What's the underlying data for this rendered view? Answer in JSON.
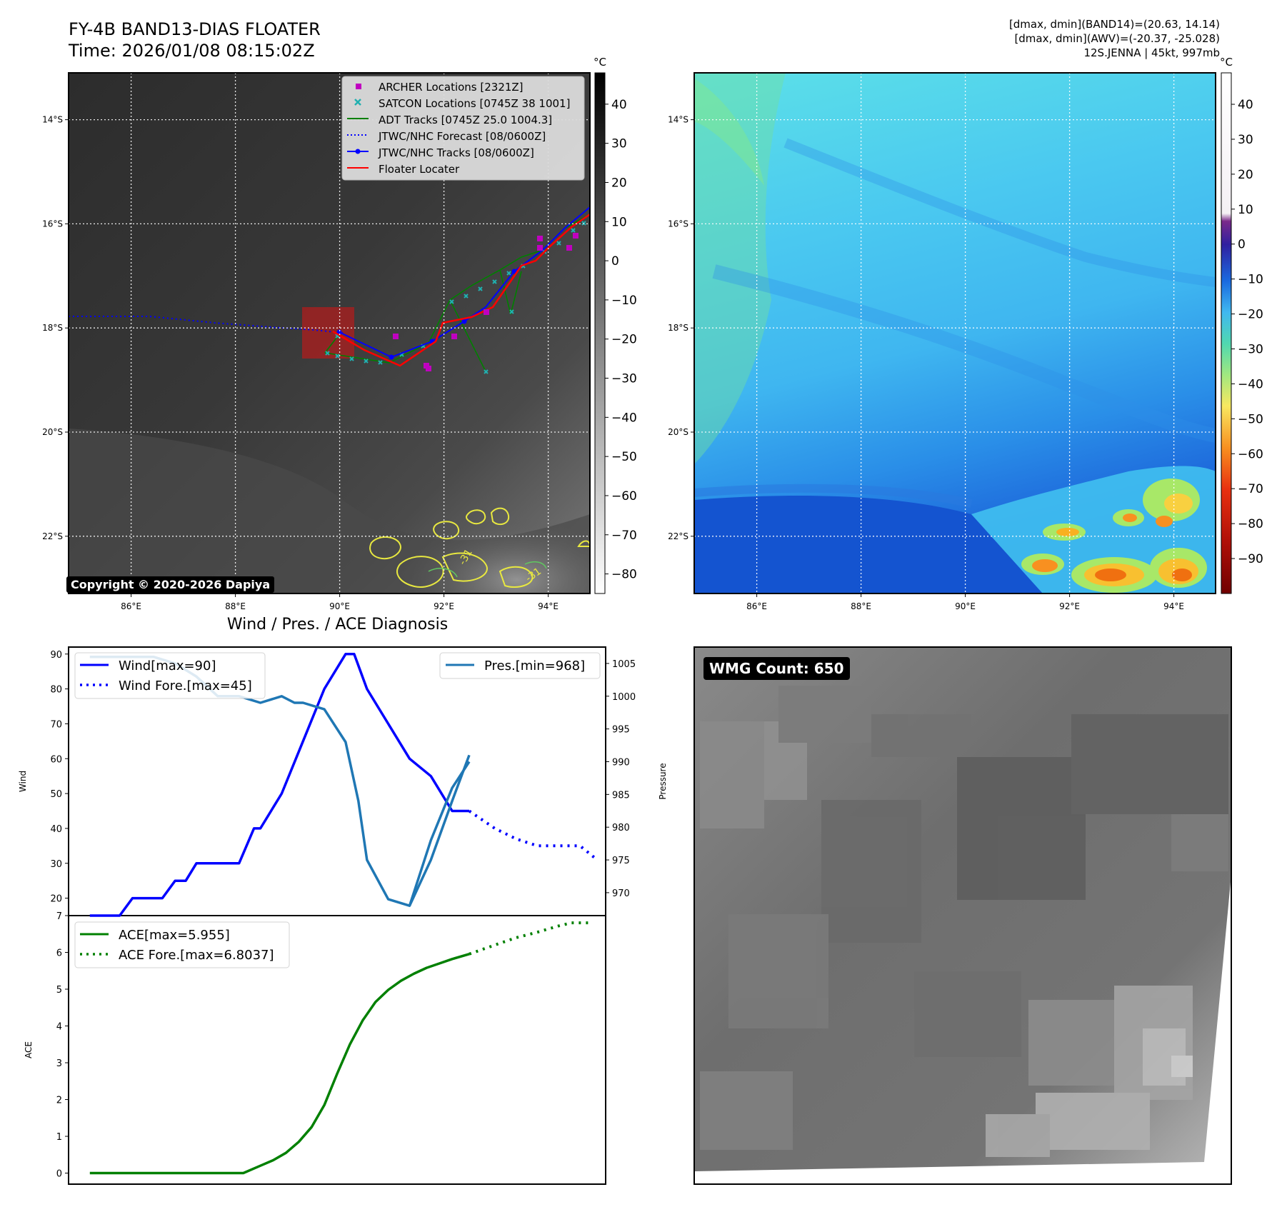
{
  "header": {
    "title_line1": "FY-4B BAND13-DIAS FLOATER",
    "title_line2": "Time: 2026/01/08 08:15:02Z",
    "right_line1": "[dmax, dmin](BAND14)=(20.63, 14.14)",
    "right_line2": "[dmax, dmin](AWV)=(-20.37, -25.028)",
    "right_line3": "12S.JENNA | 45kt, 997mb"
  },
  "copyright": "Copyright © 2020-2026 Dapiya",
  "map": {
    "lon_ticks": [
      "86°E",
      "88°E",
      "90°E",
      "92°E",
      "94°E"
    ],
    "lon_values": [
      86,
      88,
      90,
      92,
      94
    ],
    "lat_ticks": [
      "14°S",
      "16°S",
      "18°S",
      "20°S",
      "22°S"
    ],
    "lat_values": [
      -14,
      -16,
      -18,
      -20,
      -22
    ],
    "lon_range": [
      84.8,
      94.8
    ],
    "lat_range": [
      -13.1,
      -23.1
    ],
    "contour_labels": [
      "-31",
      "-31"
    ]
  },
  "legend_map": [
    {
      "label": "ARCHER Locations [2321Z]",
      "color": "#c000c0",
      "kind": "square"
    },
    {
      "label": "SATCON Locations [0745Z 38 1001]",
      "color": "#20b0b0",
      "kind": "x"
    },
    {
      "label": "ADT Tracks [0745Z 25.0 1004.3]",
      "color": "#008000",
      "kind": "line"
    },
    {
      "label": "JTWC/NHC Forecast [08/0600Z]",
      "color": "#0000ff",
      "kind": "dotted"
    },
    {
      "label": "JTWC/NHC Tracks [08/0600Z]",
      "color": "#0000ff",
      "kind": "line-dot"
    },
    {
      "label": "Floater Locater",
      "color": "#ff0000",
      "kind": "line"
    }
  ],
  "colorbar_left": {
    "unit": "°C",
    "ticks": [
      "40",
      "30",
      "20",
      "10",
      "0",
      "−10",
      "−20",
      "−30",
      "−40",
      "−50",
      "−60",
      "−70",
      "−80"
    ],
    "values": [
      40,
      30,
      20,
      10,
      0,
      -10,
      -20,
      -30,
      -40,
      -50,
      -60,
      -70,
      -80
    ],
    "range": [
      48,
      -85
    ]
  },
  "colorbar_right": {
    "unit": "°C",
    "ticks": [
      "40",
      "30",
      "20",
      "10",
      "0",
      "−10",
      "−20",
      "−30",
      "−40",
      "−50",
      "−60",
      "−70",
      "−80",
      "−90"
    ],
    "values": [
      40,
      30,
      20,
      10,
      0,
      -10,
      -20,
      -30,
      -40,
      -50,
      -60,
      -70,
      -80,
      -90
    ],
    "range": [
      49,
      -100
    ]
  },
  "diagnosis_title": "Wind / Pres. / ACE Diagnosis",
  "wmg_label": "WMG Count: 650",
  "chart_data": [
    {
      "type": "line",
      "title": "Wind / Pres. / ACE Diagnosis",
      "ylabel": "Wind",
      "y2label": "Pressure",
      "ylim": [
        15,
        92
      ],
      "y2lim": [
        966.5,
        1007.5
      ],
      "yticks": [
        20,
        30,
        40,
        50,
        60,
        70,
        80,
        90
      ],
      "y2ticks": [
        970,
        975,
        980,
        985,
        990,
        995,
        1000,
        1005
      ],
      "x": [
        0,
        1,
        2,
        3,
        4,
        5,
        6,
        7,
        8,
        9,
        10,
        11,
        12,
        13,
        14,
        15,
        16,
        17,
        18,
        19,
        20,
        21,
        22,
        23,
        24
      ],
      "series": [
        {
          "name": "Wind[max=90]",
          "color": "#0000ff",
          "style": "solid",
          "x": [
            0,
            1.4,
            2,
            3,
            3.4,
            4,
            4.5,
            5,
            6,
            7,
            7.7,
            8,
            8.5,
            9,
            10,
            11,
            12,
            12.4,
            13,
            14,
            15,
            16,
            17,
            17.8
          ],
          "values": [
            15,
            15,
            20,
            20,
            20,
            25,
            25,
            30,
            30,
            30,
            40,
            40,
            45,
            50,
            65,
            80,
            90,
            90,
            80,
            70,
            60,
            55,
            45,
            45
          ]
        },
        {
          "name": "Wind Fore.[max=45]",
          "color": "#0000ff",
          "style": "dotted",
          "x": [
            17.8,
            19,
            20,
            21,
            22,
            23,
            23.8
          ],
          "values": [
            45,
            40,
            37,
            35,
            35,
            35,
            31
          ]
        },
        {
          "name": "Pres.[min=968]",
          "color": "#1f77b4",
          "style": "solid",
          "axis": "y2",
          "x": [
            0,
            1,
            2,
            3,
            4,
            5,
            6,
            7,
            8,
            9,
            9.6,
            10,
            11,
            12,
            12.6,
            13,
            14,
            15,
            16,
            17,
            17.8
          ],
          "values": [
            1006,
            1006,
            1006,
            1006,
            1005,
            1003,
            1000,
            1000,
            999,
            1000,
            999,
            999,
            998,
            993,
            984,
            975,
            969,
            968,
            975,
            984,
            991
          ]
        },
        {
          "name": "Pres.[min=968]",
          "color": "#1f77b4",
          "style": "solid",
          "axis": "y2",
          "x": [
            15,
            16,
            17,
            17.8
          ],
          "values": [
            968,
            978,
            986,
            990
          ]
        }
      ]
    },
    {
      "type": "line",
      "ylabel": "ACE",
      "ylim": [
        -0.3,
        7
      ],
      "yticks": [
        0,
        1,
        2,
        3,
        4,
        5,
        6,
        7
      ],
      "x": [
        0,
        1,
        2,
        3,
        4,
        5,
        6,
        7,
        8,
        9,
        10,
        11,
        12,
        13,
        14,
        15,
        16,
        17,
        17.8
      ],
      "series": [
        {
          "name": "ACE[max=5.955]",
          "color": "#008000",
          "style": "solid",
          "x": [
            0,
            7.2,
            8,
            8.6,
            9.2,
            9.8,
            10.4,
            11,
            11.6,
            12.2,
            12.8,
            13.4,
            14,
            14.6,
            15.2,
            15.8,
            16.4,
            17,
            17.8
          ],
          "values": [
            0,
            0,
            0.2,
            0.35,
            0.55,
            0.85,
            1.25,
            1.85,
            2.7,
            3.5,
            4.15,
            4.65,
            4.98,
            5.23,
            5.42,
            5.58,
            5.7,
            5.82,
            5.955
          ]
        },
        {
          "name": "ACE Fore.[max=6.8037]",
          "color": "#008000",
          "style": "dotted",
          "x": [
            17.8,
            19,
            20,
            21,
            22,
            22.6,
            23.6
          ],
          "values": [
            5.955,
            6.2,
            6.4,
            6.55,
            6.72,
            6.8037,
            6.8037
          ]
        }
      ]
    }
  ]
}
